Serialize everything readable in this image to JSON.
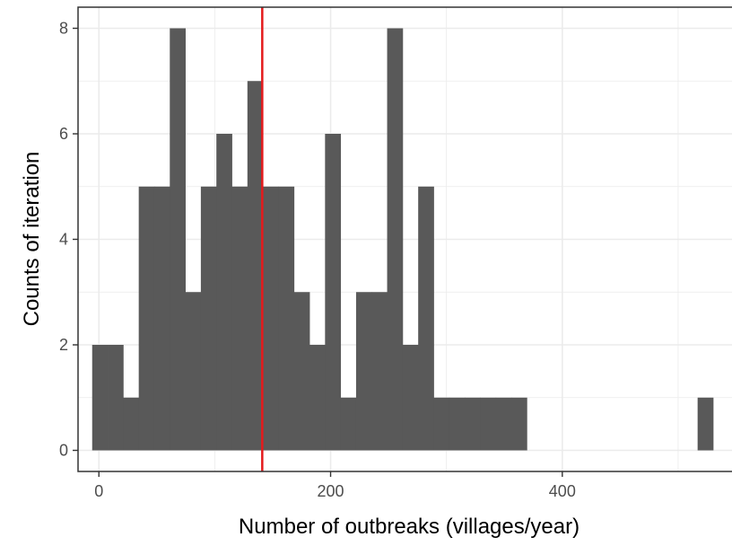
{
  "chart_data": {
    "type": "bar",
    "xlabel": "Number of outbreaks (villages/year)",
    "ylabel": "Counts of iteration",
    "xlim": [
      -18,
      555
    ],
    "ylim": [
      -0.4,
      8.4
    ],
    "x_ticks": [
      0,
      200,
      400
    ],
    "y_ticks": [
      0,
      2,
      4,
      6,
      8
    ],
    "grid": true,
    "bin_width": 13.4,
    "bins": [
      {
        "x0": -5.8,
        "x1": 7.6,
        "count": 2
      },
      {
        "x0": 7.6,
        "x1": 21.0,
        "count": 2
      },
      {
        "x0": 21.0,
        "x1": 34.4,
        "count": 1
      },
      {
        "x0": 34.4,
        "x1": 47.8,
        "count": 5
      },
      {
        "x0": 47.8,
        "x1": 61.2,
        "count": 5
      },
      {
        "x0": 61.2,
        "x1": 74.6,
        "count": 8
      },
      {
        "x0": 74.6,
        "x1": 88.0,
        "count": 3
      },
      {
        "x0": 88.0,
        "x1": 101.4,
        "count": 5
      },
      {
        "x0": 101.4,
        "x1": 114.8,
        "count": 6
      },
      {
        "x0": 114.8,
        "x1": 128.2,
        "count": 5
      },
      {
        "x0": 128.2,
        "x1": 141.6,
        "count": 7
      },
      {
        "x0": 141.6,
        "x1": 155.0,
        "count": 5
      },
      {
        "x0": 155.0,
        "x1": 168.4,
        "count": 5
      },
      {
        "x0": 168.4,
        "x1": 181.8,
        "count": 3
      },
      {
        "x0": 181.8,
        "x1": 195.2,
        "count": 2
      },
      {
        "x0": 195.2,
        "x1": 208.6,
        "count": 6
      },
      {
        "x0": 208.6,
        "x1": 222.0,
        "count": 1
      },
      {
        "x0": 222.0,
        "x1": 235.4,
        "count": 3
      },
      {
        "x0": 235.4,
        "x1": 248.8,
        "count": 3
      },
      {
        "x0": 248.8,
        "x1": 262.2,
        "count": 8
      },
      {
        "x0": 262.2,
        "x1": 275.6,
        "count": 2
      },
      {
        "x0": 275.6,
        "x1": 289.0,
        "count": 5
      },
      {
        "x0": 289.0,
        "x1": 302.4,
        "count": 1
      },
      {
        "x0": 302.4,
        "x1": 315.8,
        "count": 1
      },
      {
        "x0": 315.8,
        "x1": 329.2,
        "count": 1
      },
      {
        "x0": 329.2,
        "x1": 342.6,
        "count": 1
      },
      {
        "x0": 342.6,
        "x1": 356.0,
        "count": 1
      },
      {
        "x0": 356.0,
        "x1": 369.4,
        "count": 1
      },
      {
        "x0": 516.8,
        "x1": 530.2,
        "count": 1
      }
    ],
    "reference_line": {
      "x": 141,
      "color": "#e41a1c"
    },
    "colors": {
      "bar": "#595959",
      "grid": "#ebebeb",
      "panel_border": "#333333",
      "tick_label": "#4d4d4d"
    }
  }
}
